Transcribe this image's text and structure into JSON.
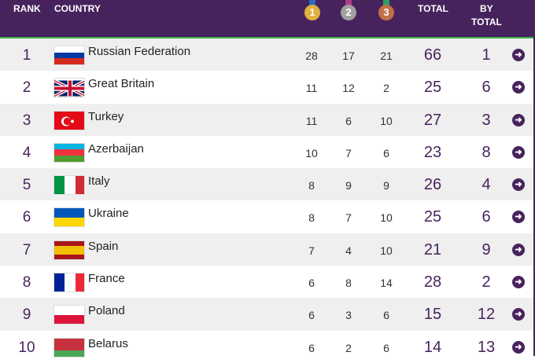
{
  "header": {
    "rank": "RANK",
    "country": "COUNTRY",
    "gold": "1",
    "silver": "2",
    "bronze": "3",
    "total": "TOTAL",
    "by_total_1": "BY",
    "by_total_2": "TOTAL"
  },
  "colors": {
    "header_bg": "#47235e",
    "accent_line": "#3bb54a"
  },
  "rows": [
    {
      "rank": "1",
      "country": "Russian Federation",
      "flag": "russia",
      "gold": "28",
      "silver": "17",
      "bronze": "21",
      "total": "66",
      "by_total": "1"
    },
    {
      "rank": "2",
      "country": "Great Britain",
      "flag": "uk",
      "gold": "11",
      "silver": "12",
      "bronze": "2",
      "total": "25",
      "by_total": "6"
    },
    {
      "rank": "3",
      "country": "Turkey",
      "flag": "turkey",
      "gold": "11",
      "silver": "6",
      "bronze": "10",
      "total": "27",
      "by_total": "3"
    },
    {
      "rank": "4",
      "country": "Azerbaijan",
      "flag": "azerbaijan",
      "gold": "10",
      "silver": "7",
      "bronze": "6",
      "total": "23",
      "by_total": "8"
    },
    {
      "rank": "5",
      "country": "Italy",
      "flag": "italy",
      "gold": "8",
      "silver": "9",
      "bronze": "9",
      "total": "26",
      "by_total": "4"
    },
    {
      "rank": "6",
      "country": "Ukraine",
      "flag": "ukraine",
      "gold": "8",
      "silver": "7",
      "bronze": "10",
      "total": "25",
      "by_total": "6"
    },
    {
      "rank": "7",
      "country": "Spain",
      "flag": "spain",
      "gold": "7",
      "silver": "4",
      "bronze": "10",
      "total": "21",
      "by_total": "9"
    },
    {
      "rank": "8",
      "country": "France",
      "flag": "france",
      "gold": "6",
      "silver": "8",
      "bronze": "14",
      "total": "28",
      "by_total": "2"
    },
    {
      "rank": "9",
      "country": "Poland",
      "flag": "poland",
      "gold": "6",
      "silver": "3",
      "bronze": "6",
      "total": "15",
      "by_total": "12"
    },
    {
      "rank": "10",
      "country": "Belarus",
      "flag": "belarus",
      "gold": "6",
      "silver": "2",
      "bronze": "6",
      "total": "14",
      "by_total": "13"
    }
  ]
}
